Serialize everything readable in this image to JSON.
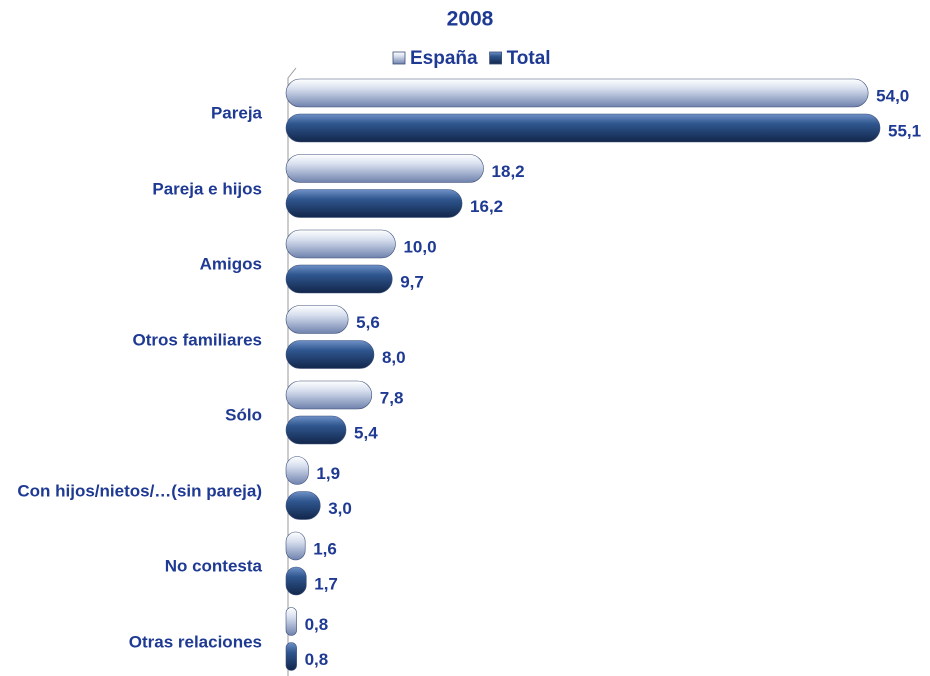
{
  "chart_data": {
    "type": "bar",
    "orientation": "horizontal",
    "title": "2008",
    "categories": [
      "Pareja",
      "Pareja e hijos",
      "Amigos",
      "Otros familiares",
      "Sólo",
      "Con hijos/nietos/…(sin pareja)",
      "No contesta",
      "Otras relaciones"
    ],
    "series": [
      {
        "name": "España",
        "color": "#9fb0d3",
        "values": [
          54.0,
          18.2,
          10.0,
          5.6,
          7.8,
          1.9,
          1.6,
          0.8
        ],
        "value_labels": [
          "54,0",
          "18,2",
          "10,0",
          "5,6",
          "7,8",
          "1,9",
          "1,6",
          "0,8"
        ]
      },
      {
        "name": "Total",
        "color": "#2b4f8a",
        "values": [
          55.1,
          16.2,
          9.7,
          8.0,
          5.4,
          3.0,
          1.7,
          0.8
        ],
        "value_labels": [
          "55,1",
          "16,2",
          "9,7",
          "8,0",
          "5,4",
          "3,0",
          "1,7",
          "0,8"
        ]
      }
    ],
    "legend": "top"
  }
}
